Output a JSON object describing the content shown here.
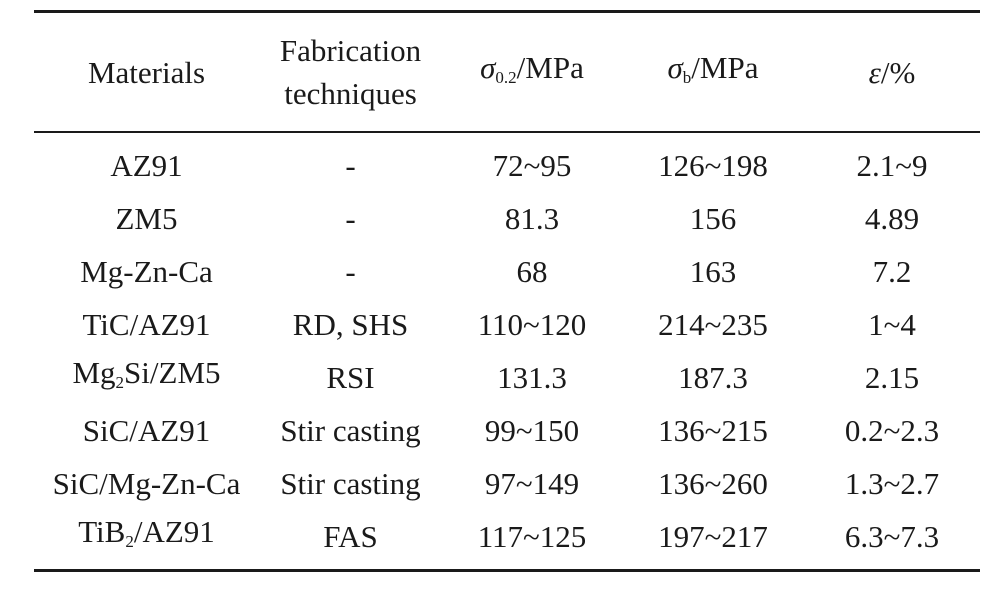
{
  "table": {
    "headers": {
      "materials": "Materials",
      "fabrication_line1": "Fabrication",
      "fabrication_line2": "techniques",
      "yield_symbol": "σ",
      "yield_subscript": "0.2",
      "yield_unit": "/MPa",
      "tensile_symbol": "σ",
      "tensile_subscript": "b",
      "tensile_unit": "/MPa",
      "elongation_symbol": "ε",
      "elongation_unit": "/%"
    },
    "rows": [
      {
        "material": "AZ91",
        "technique": "-",
        "yield": "72~95",
        "tensile": "126~198",
        "elongation": "2.1~9"
      },
      {
        "material": "ZM5",
        "technique": "-",
        "yield": "81.3",
        "tensile": "156",
        "elongation": "4.89"
      },
      {
        "material": "Mg-Zn-Ca",
        "technique": "-",
        "yield": "68",
        "tensile": "163",
        "elongation": "7.2"
      },
      {
        "material": "TiC/AZ91",
        "technique": "RD, SHS",
        "yield": "110~120",
        "tensile": "214~235",
        "elongation": "1~4"
      },
      {
        "material_pre": "Mg",
        "material_sub": "2",
        "material_post": "Si/ZM5",
        "technique": "RSI",
        "yield": "131.3",
        "tensile": "187.3",
        "elongation": "2.15"
      },
      {
        "material": "SiC/AZ91",
        "technique": "Stir casting",
        "yield": "99~150",
        "tensile": "136~215",
        "elongation": "0.2~2.3"
      },
      {
        "material": "SiC/Mg-Zn-Ca",
        "technique": "Stir casting",
        "yield": "97~149",
        "tensile": "136~260",
        "elongation": "1.3~2.7"
      },
      {
        "material_pre": "TiB",
        "material_sub": "2",
        "material_post": "/AZ91",
        "technique": "FAS",
        "yield": "117~125",
        "tensile": "197~217",
        "elongation": "6.3~7.3"
      }
    ]
  }
}
